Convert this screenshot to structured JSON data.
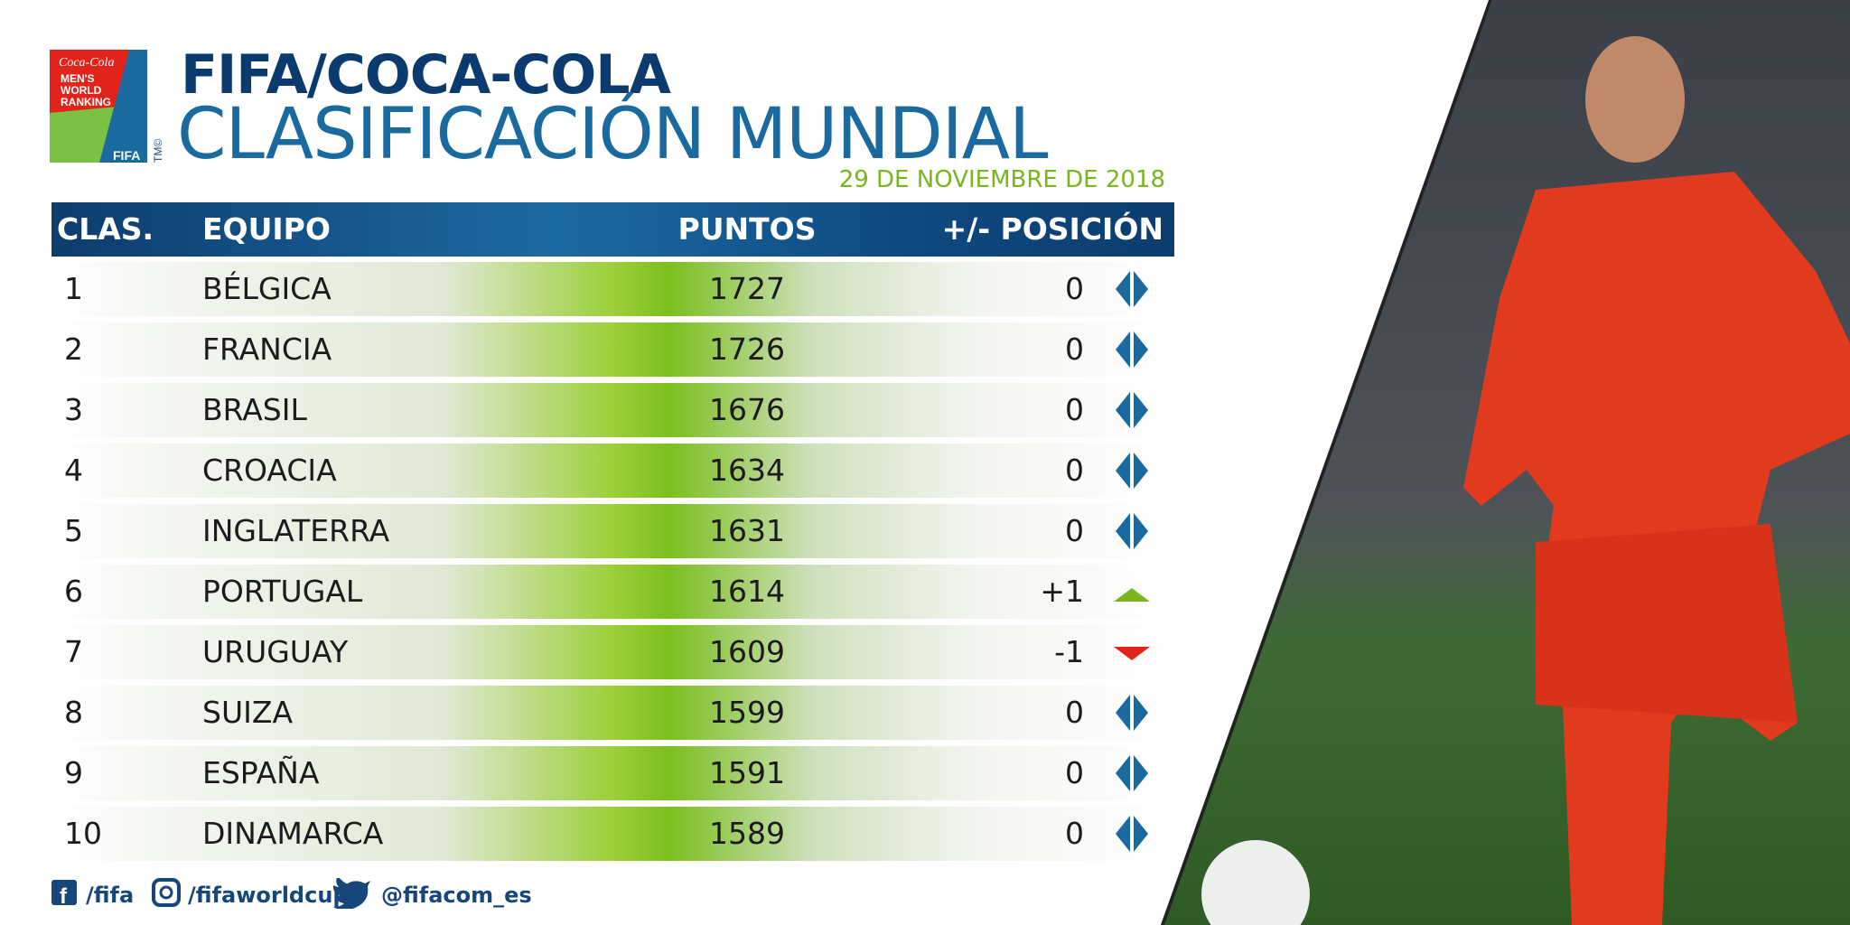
{
  "logo": {
    "brand": "Coca-Cola",
    "line1": "MEN'S",
    "line2": "WORLD",
    "line3": "RANKING",
    "org": "FIFA",
    "mark": "TM©"
  },
  "header": {
    "brand": "FIFA/COCA-COLA",
    "title": "CLASIFICACIÓN MUNDIAL",
    "date": "29 DE NOVIEMBRE DE 2018"
  },
  "table": {
    "columns": [
      "CLAS.",
      "EQUIPO",
      "PUNTOS",
      "+/- POSICIÓN"
    ],
    "rows": [
      [
        1,
        "BÉLGICA",
        1727,
        0
      ],
      [
        2,
        "FRANCIA",
        1726,
        0
      ],
      [
        3,
        "BRASIL",
        1676,
        0
      ],
      [
        4,
        "CROACIA",
        1634,
        0
      ],
      [
        5,
        "INGLATERRA",
        1631,
        0
      ],
      [
        6,
        "PORTUGAL",
        1614,
        "+1"
      ],
      [
        7,
        "URUGUAY",
        1609,
        -1
      ],
      [
        8,
        "SUIZA",
        1599,
        0
      ],
      [
        9,
        "ESPAÑA",
        1591,
        0
      ],
      [
        10,
        "DINAMARCA",
        1589,
        0
      ]
    ]
  },
  "footer": {
    "facebook": "/fifa",
    "instagram": "/fifaworldcup",
    "twitter": "@fifacom_es"
  }
}
